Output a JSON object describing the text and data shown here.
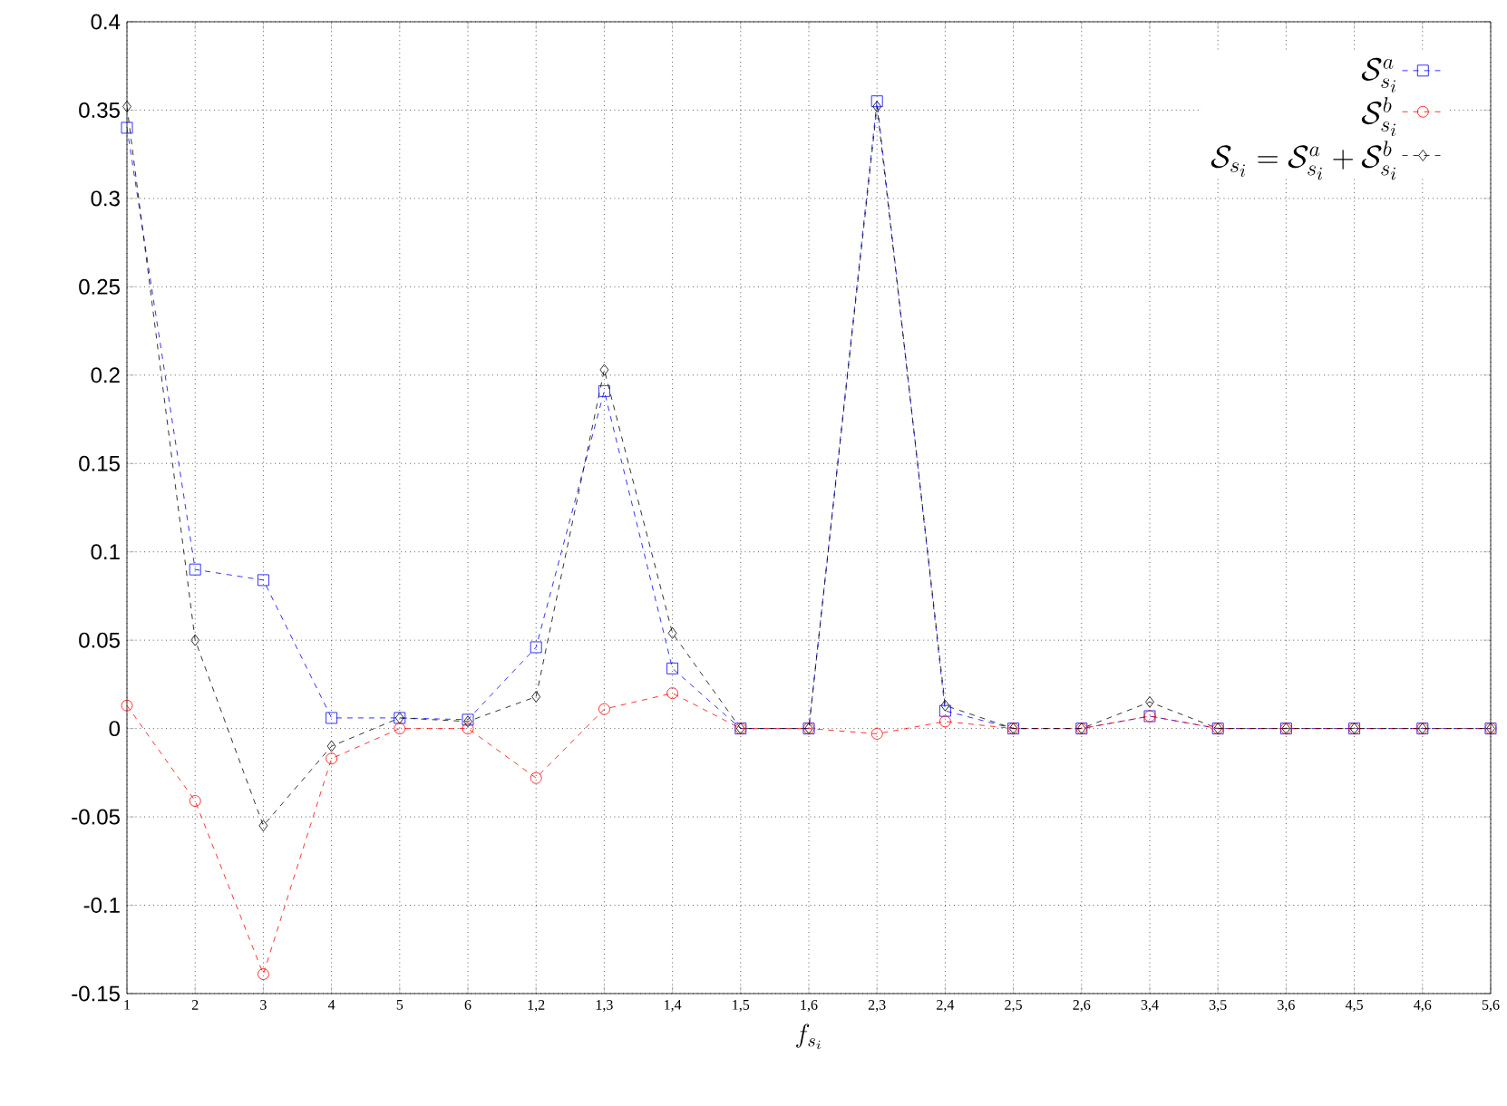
{
  "chart_data": {
    "type": "line",
    "xlabel": "f_{s_i}",
    "categories": [
      "1",
      "2",
      "3",
      "4",
      "5",
      "6",
      "1,2",
      "1,3",
      "1,4",
      "1,5",
      "1,6",
      "2,3",
      "2,4",
      "2,5",
      "2,6",
      "3,4",
      "3,5",
      "3,6",
      "4,5",
      "4,6",
      "5,6"
    ],
    "series": [
      {
        "name": "\\mathcal{S}^a_{s_i}",
        "color": "#0000ff",
        "marker": "square",
        "values": [
          0.34,
          0.09,
          0.084,
          0.006,
          0.006,
          0.005,
          0.046,
          0.191,
          0.034,
          0,
          0,
          0.355,
          0.01,
          0,
          0,
          0.007,
          0,
          0,
          0,
          0,
          0
        ]
      },
      {
        "name": "\\mathcal{S}^b_{s_i}",
        "color": "#ff0000",
        "marker": "circle",
        "values": [
          0.013,
          -0.041,
          -0.139,
          -0.017,
          0,
          0,
          -0.028,
          0.011,
          0.02,
          0,
          0,
          -0.003,
          0.004,
          0,
          0,
          0.007,
          0,
          0,
          0,
          0,
          0
        ]
      },
      {
        "name": "\\mathcal{S}_{s_i}=\\mathcal{S}^a_{s_i}+\\mathcal{S}^b_{s_i}",
        "color": "#000000",
        "marker": "diamond",
        "values": [
          0.352,
          0.05,
          -0.055,
          -0.01,
          0.006,
          0.004,
          0.018,
          0.203,
          0.054,
          0,
          0,
          0.352,
          0.013,
          0,
          0,
          0.015,
          0,
          0,
          0,
          0,
          0
        ]
      }
    ],
    "ylim": [
      -0.15,
      0.4
    ],
    "yticks": [
      -0.15,
      -0.1,
      -0.05,
      0,
      0.05,
      0.1,
      0.15,
      0.2,
      0.25,
      0.3,
      0.35,
      0.4
    ],
    "grid": true,
    "legend": "top right",
    "line_style": "dashed"
  }
}
